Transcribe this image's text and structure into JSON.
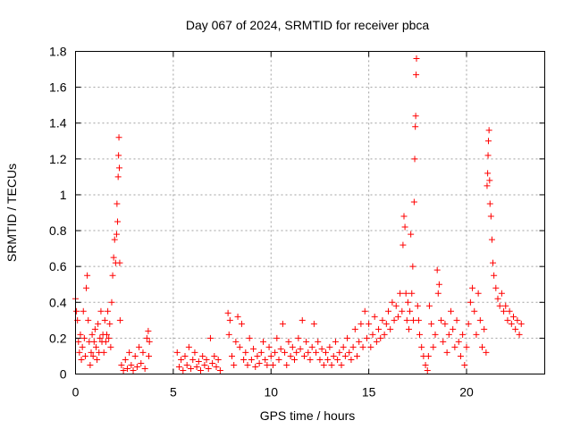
{
  "chart_data": {
    "type": "scatter",
    "title": "Day 067 of 2024, SRMTID for receiver pbca",
    "xlabel": "GPS time / hours",
    "ylabel": "SRMTID / TECUs",
    "xlim": [
      0,
      24
    ],
    "ylim": [
      0,
      1.8
    ],
    "x_ticks": [
      0,
      5,
      10,
      15,
      20
    ],
    "x_tick_labels": [
      "0",
      "5",
      "10",
      "15",
      "20"
    ],
    "y_ticks": [
      0,
      0.2,
      0.4,
      0.6,
      0.8,
      1.0,
      1.2,
      1.4,
      1.6,
      1.8
    ],
    "y_tick_labels": [
      "0",
      "0.2",
      "0.4",
      "0.6",
      "0.8",
      "1",
      "1.2",
      "1.4",
      "1.6",
      "1.8"
    ],
    "grid": true,
    "marker": "+",
    "series": [
      {
        "name": "SRMTID",
        "color": "#ff0000",
        "points": [
          [
            0.0,
            0.42
          ],
          [
            0.05,
            0.35
          ],
          [
            0.1,
            0.3
          ],
          [
            0.15,
            0.18
          ],
          [
            0.2,
            0.12
          ],
          [
            0.25,
            0.22
          ],
          [
            0.3,
            0.08
          ],
          [
            0.35,
            0.15
          ],
          [
            0.4,
            0.35
          ],
          [
            0.45,
            0.2
          ],
          [
            0.5,
            0.1
          ],
          [
            0.55,
            0.48
          ],
          [
            0.6,
            0.55
          ],
          [
            0.65,
            0.3
          ],
          [
            0.7,
            0.18
          ],
          [
            0.75,
            0.05
          ],
          [
            0.8,
            0.12
          ],
          [
            0.85,
            0.22
          ],
          [
            0.9,
            0.1
          ],
          [
            0.95,
            0.18
          ],
          [
            1.0,
            0.25
          ],
          [
            1.05,
            0.15
          ],
          [
            1.1,
            0.08
          ],
          [
            1.15,
            0.28
          ],
          [
            1.2,
            0.12
          ],
          [
            1.25,
            0.2
          ],
          [
            1.3,
            0.35
          ],
          [
            1.35,
            0.18
          ],
          [
            1.4,
            0.22
          ],
          [
            1.45,
            0.12
          ],
          [
            1.5,
            0.3
          ],
          [
            1.55,
            0.18
          ],
          [
            1.6,
            0.22
          ],
          [
            1.65,
            0.35
          ],
          [
            1.7,
            0.2
          ],
          [
            1.75,
            0.28
          ],
          [
            1.8,
            0.15
          ],
          [
            1.85,
            0.4
          ],
          [
            1.9,
            0.55
          ],
          [
            1.95,
            0.65
          ],
          [
            2.0,
            0.75
          ],
          [
            2.05,
            0.62
          ],
          [
            2.1,
            0.78
          ],
          [
            2.12,
            0.95
          ],
          [
            2.15,
            0.85
          ],
          [
            2.18,
            1.1
          ],
          [
            2.2,
            1.22
          ],
          [
            2.22,
            1.32
          ],
          [
            2.24,
            1.15
          ],
          [
            2.26,
            0.62
          ],
          [
            2.28,
            0.3
          ],
          [
            2.35,
            0.05
          ],
          [
            2.45,
            0.02
          ],
          [
            2.55,
            0.08
          ],
          [
            2.65,
            0.03
          ],
          [
            2.75,
            0.12
          ],
          [
            2.85,
            0.05
          ],
          [
            2.95,
            0.02
          ],
          [
            3.05,
            0.1
          ],
          [
            3.15,
            0.04
          ],
          [
            3.25,
            0.15
          ],
          [
            3.35,
            0.06
          ],
          [
            3.45,
            0.12
          ],
          [
            3.55,
            0.03
          ],
          [
            3.65,
            0.2
          ],
          [
            3.72,
            0.24
          ],
          [
            3.75,
            0.1
          ],
          [
            3.78,
            0.18
          ],
          [
            5.2,
            0.12
          ],
          [
            5.3,
            0.04
          ],
          [
            5.4,
            0.08
          ],
          [
            5.5,
            0.02
          ],
          [
            5.6,
            0.1
          ],
          [
            5.7,
            0.05
          ],
          [
            5.8,
            0.15
          ],
          [
            5.9,
            0.03
          ],
          [
            6.0,
            0.08
          ],
          [
            6.1,
            0.12
          ],
          [
            6.2,
            0.04
          ],
          [
            6.3,
            0.07
          ],
          [
            6.4,
            0.02
          ],
          [
            6.5,
            0.1
          ],
          [
            6.6,
            0.05
          ],
          [
            6.7,
            0.08
          ],
          [
            6.8,
            0.03
          ],
          [
            6.9,
            0.2
          ],
          [
            7.0,
            0.06
          ],
          [
            7.1,
            0.1
          ],
          [
            7.2,
            0.04
          ],
          [
            7.3,
            0.08
          ],
          [
            7.4,
            0.02
          ],
          [
            7.8,
            0.34
          ],
          [
            7.85,
            0.22
          ],
          [
            7.9,
            0.3
          ],
          [
            8.0,
            0.1
          ],
          [
            8.1,
            0.05
          ],
          [
            8.2,
            0.18
          ],
          [
            8.3,
            0.32
          ],
          [
            8.4,
            0.15
          ],
          [
            8.5,
            0.28
          ],
          [
            8.6,
            0.08
          ],
          [
            8.7,
            0.12
          ],
          [
            8.8,
            0.05
          ],
          [
            8.9,
            0.2
          ],
          [
            9.0,
            0.08
          ],
          [
            9.1,
            0.14
          ],
          [
            9.2,
            0.04
          ],
          [
            9.3,
            0.1
          ],
          [
            9.4,
            0.06
          ],
          [
            9.5,
            0.12
          ],
          [
            9.6,
            0.18
          ],
          [
            9.7,
            0.08
          ],
          [
            9.8,
            0.05
          ],
          [
            9.9,
            0.15
          ],
          [
            10.0,
            0.1
          ],
          [
            10.1,
            0.05
          ],
          [
            10.2,
            0.12
          ],
          [
            10.3,
            0.2
          ],
          [
            10.4,
            0.08
          ],
          [
            10.5,
            0.14
          ],
          [
            10.6,
            0.28
          ],
          [
            10.7,
            0.12
          ],
          [
            10.8,
            0.05
          ],
          [
            10.9,
            0.18
          ],
          [
            11.0,
            0.1
          ],
          [
            11.1,
            0.15
          ],
          [
            11.2,
            0.08
          ],
          [
            11.3,
            0.12
          ],
          [
            11.4,
            0.2
          ],
          [
            11.5,
            0.14
          ],
          [
            11.6,
            0.3
          ],
          [
            11.7,
            0.1
          ],
          [
            11.8,
            0.18
          ],
          [
            11.9,
            0.12
          ],
          [
            12.0,
            0.08
          ],
          [
            12.1,
            0.15
          ],
          [
            12.2,
            0.28
          ],
          [
            12.3,
            0.12
          ],
          [
            12.4,
            0.18
          ],
          [
            12.5,
            0.08
          ],
          [
            12.6,
            0.14
          ],
          [
            12.7,
            0.05
          ],
          [
            12.8,
            0.12
          ],
          [
            12.9,
            0.08
          ],
          [
            13.0,
            0.15
          ],
          [
            13.1,
            0.05
          ],
          [
            13.2,
            0.1
          ],
          [
            13.3,
            0.18
          ],
          [
            13.4,
            0.08
          ],
          [
            13.5,
            0.12
          ],
          [
            13.6,
            0.05
          ],
          [
            13.7,
            0.15
          ],
          [
            13.8,
            0.1
          ],
          [
            13.9,
            0.2
          ],
          [
            14.0,
            0.12
          ],
          [
            14.1,
            0.08
          ],
          [
            14.2,
            0.15
          ],
          [
            14.3,
            0.25
          ],
          [
            14.4,
            0.1
          ],
          [
            14.5,
            0.18
          ],
          [
            14.6,
            0.28
          ],
          [
            14.7,
            0.15
          ],
          [
            14.8,
            0.35
          ],
          [
            14.9,
            0.2
          ],
          [
            15.0,
            0.28
          ],
          [
            15.1,
            0.15
          ],
          [
            15.2,
            0.22
          ],
          [
            15.3,
            0.32
          ],
          [
            15.4,
            0.18
          ],
          [
            15.5,
            0.25
          ],
          [
            15.6,
            0.2
          ],
          [
            15.7,
            0.3
          ],
          [
            15.8,
            0.22
          ],
          [
            15.9,
            0.28
          ],
          [
            16.0,
            0.35
          ],
          [
            16.1,
            0.25
          ],
          [
            16.2,
            0.4
          ],
          [
            16.3,
            0.3
          ],
          [
            16.4,
            0.38
          ],
          [
            16.5,
            0.32
          ],
          [
            16.6,
            0.45
          ],
          [
            16.7,
            0.35
          ],
          [
            16.75,
            0.72
          ],
          [
            16.8,
            0.88
          ],
          [
            16.85,
            0.82
          ],
          [
            16.9,
            0.45
          ],
          [
            16.95,
            0.3
          ],
          [
            17.0,
            0.4
          ],
          [
            17.05,
            0.25
          ],
          [
            17.1,
            0.35
          ],
          [
            17.15,
            0.78
          ],
          [
            17.2,
            0.45
          ],
          [
            17.25,
            0.6
          ],
          [
            17.28,
            0.3
          ],
          [
            17.32,
            0.96
          ],
          [
            17.35,
            1.2
          ],
          [
            17.38,
            1.38
          ],
          [
            17.4,
            1.44
          ],
          [
            17.42,
            1.67
          ],
          [
            17.44,
            1.76
          ],
          [
            17.5,
            0.38
          ],
          [
            17.55,
            0.3
          ],
          [
            17.6,
            0.22
          ],
          [
            17.7,
            0.15
          ],
          [
            17.8,
            0.1
          ],
          [
            17.9,
            0.05
          ],
          [
            18.0,
            0.02
          ],
          [
            18.05,
            0.1
          ],
          [
            18.1,
            0.38
          ],
          [
            18.2,
            0.28
          ],
          [
            18.3,
            0.15
          ],
          [
            18.4,
            0.22
          ],
          [
            18.5,
            0.58
          ],
          [
            18.55,
            0.45
          ],
          [
            18.6,
            0.5
          ],
          [
            18.7,
            0.3
          ],
          [
            18.8,
            0.18
          ],
          [
            18.9,
            0.28
          ],
          [
            19.0,
            0.12
          ],
          [
            19.1,
            0.22
          ],
          [
            19.2,
            0.35
          ],
          [
            19.3,
            0.25
          ],
          [
            19.4,
            0.15
          ],
          [
            19.5,
            0.3
          ],
          [
            19.6,
            0.18
          ],
          [
            19.7,
            0.1
          ],
          [
            19.8,
            0.22
          ],
          [
            19.9,
            0.05
          ],
          [
            20.0,
            0.15
          ],
          [
            20.1,
            0.28
          ],
          [
            20.2,
            0.4
          ],
          [
            20.3,
            0.48
          ],
          [
            20.4,
            0.35
          ],
          [
            20.5,
            0.22
          ],
          [
            20.6,
            0.45
          ],
          [
            20.7,
            0.3
          ],
          [
            20.8,
            0.15
          ],
          [
            20.9,
            0.25
          ],
          [
            21.0,
            0.12
          ],
          [
            21.05,
            1.05
          ],
          [
            21.08,
            1.12
          ],
          [
            21.1,
            1.22
          ],
          [
            21.12,
            1.3
          ],
          [
            21.15,
            1.36
          ],
          [
            21.18,
            1.08
          ],
          [
            21.2,
            0.95
          ],
          [
            21.25,
            0.88
          ],
          [
            21.3,
            0.75
          ],
          [
            21.35,
            0.62
          ],
          [
            21.4,
            0.55
          ],
          [
            21.5,
            0.48
          ],
          [
            21.6,
            0.42
          ],
          [
            21.7,
            0.38
          ],
          [
            21.8,
            0.45
          ],
          [
            21.9,
            0.35
          ],
          [
            22.0,
            0.38
          ],
          [
            22.1,
            0.3
          ],
          [
            22.2,
            0.35
          ],
          [
            22.3,
            0.28
          ],
          [
            22.4,
            0.32
          ],
          [
            22.5,
            0.25
          ],
          [
            22.6,
            0.3
          ],
          [
            22.7,
            0.22
          ],
          [
            22.8,
            0.28
          ]
        ]
      }
    ]
  }
}
